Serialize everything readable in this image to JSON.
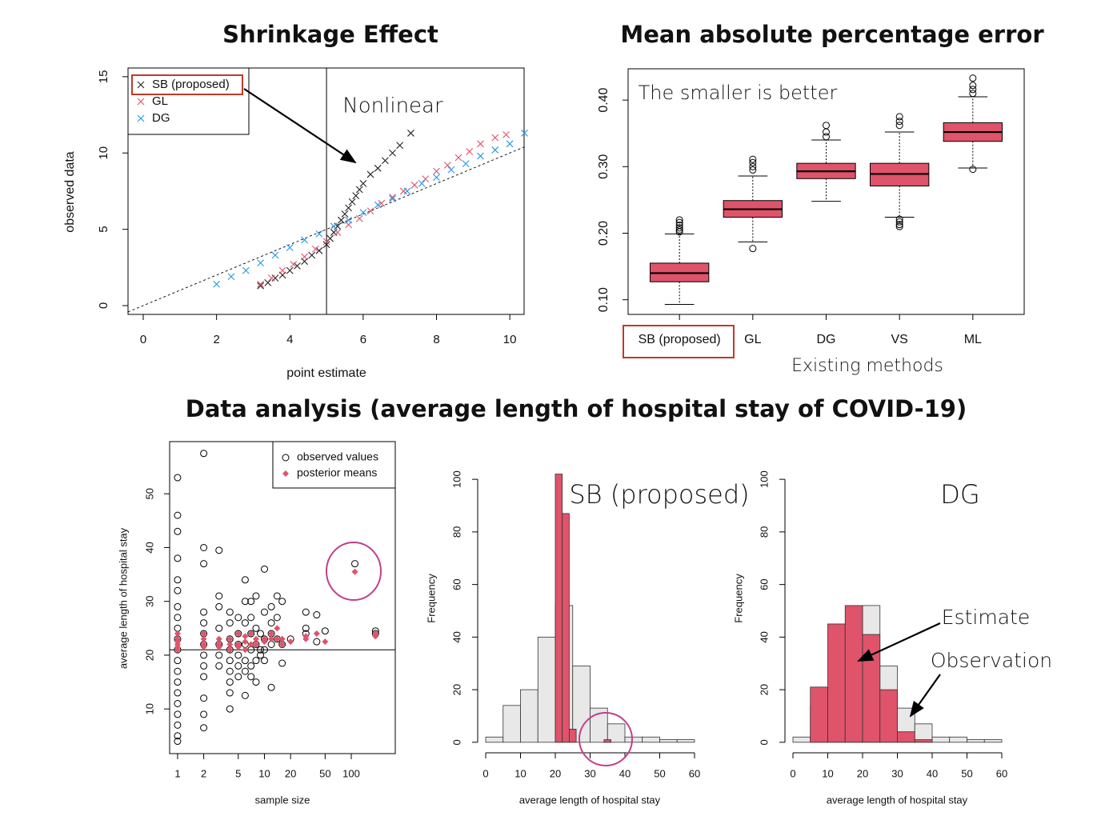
{
  "chart_data": [
    {
      "type": "scatter",
      "title": "Shrinkage Effect",
      "xlabel": "point estimate",
      "ylabel": "observed data",
      "xlim": [
        -0.415,
        10.39
      ],
      "ylim": [
        -0.577,
        15.57
      ],
      "xticks": [
        0,
        2,
        4,
        6,
        8,
        10
      ],
      "yticks": [
        0,
        5,
        10,
        15
      ],
      "vline": 5,
      "annotations": [
        "Nonlinear"
      ],
      "legend": "top-left",
      "series": [
        {
          "name": "SB (proposed)",
          "color": "#222222",
          "marker": "x",
          "x": [
            3.2,
            3.4,
            3.6,
            3.8,
            4.0,
            4.2,
            4.4,
            4.6,
            4.8,
            5.0,
            5.1,
            5.2,
            5.3,
            5.4,
            5.5,
            5.6,
            5.7,
            5.8,
            5.9,
            6.0,
            6.2,
            6.4,
            6.6,
            6.8,
            7.0,
            7.3
          ],
          "values": [
            1.3,
            1.5,
            1.8,
            2.0,
            2.3,
            2.6,
            2.9,
            3.3,
            3.6,
            4.0,
            4.4,
            4.8,
            5.2,
            5.6,
            6.0,
            6.4,
            6.8,
            7.2,
            7.6,
            8.0,
            8.6,
            9.0,
            9.5,
            10.0,
            10.5,
            11.3
          ]
        },
        {
          "name": "GL",
          "color": "#df536b",
          "marker": "x",
          "x": [
            3.2,
            3.5,
            3.8,
            4.1,
            4.4,
            4.7,
            5.0,
            5.3,
            5.6,
            5.9,
            6.2,
            6.5,
            6.8,
            7.1,
            7.4,
            7.7,
            8.0,
            8.3,
            8.6,
            8.9,
            9.2,
            9.6,
            9.9
          ],
          "values": [
            1.4,
            1.8,
            2.3,
            2.7,
            3.2,
            3.7,
            4.2,
            4.8,
            5.3,
            5.7,
            6.2,
            6.7,
            7.1,
            7.5,
            7.9,
            8.3,
            8.8,
            9.2,
            9.7,
            10.1,
            10.6,
            11.0,
            11.2
          ]
        },
        {
          "name": "DG",
          "color": "#2297e6",
          "marker": "x",
          "x": [
            2.0,
            2.4,
            2.8,
            3.2,
            3.6,
            4.0,
            4.4,
            4.8,
            5.2,
            5.6,
            6.0,
            6.4,
            6.8,
            7.2,
            7.6,
            8.0,
            8.4,
            8.8,
            9.2,
            9.6,
            10.0,
            10.4
          ],
          "values": [
            1.4,
            1.9,
            2.3,
            2.8,
            3.3,
            3.8,
            4.3,
            4.7,
            5.2,
            5.6,
            6.1,
            6.6,
            7.0,
            7.5,
            8.0,
            8.4,
            8.9,
            9.3,
            9.8,
            10.2,
            10.6,
            11.3
          ]
        }
      ]
    },
    {
      "type": "box",
      "title": "Mean absolute percentage error",
      "xlabel": "Existing methods",
      "annotations": [
        "The smaller is better"
      ],
      "categories": [
        "SB (proposed)",
        "GL",
        "DG",
        "VS",
        "ML"
      ],
      "ylim": [
        0.078,
        0.447
      ],
      "yticks": [
        {
          "value": 0.1,
          "label": "0.10"
        },
        {
          "value": 0.2,
          "label": "0.20"
        },
        {
          "value": 0.3,
          "label": "0.30"
        },
        {
          "value": 0.4,
          "label": "0.40"
        }
      ],
      "color": "#df536b",
      "boxes": [
        {
          "whislo": 0.093,
          "q1": 0.127,
          "median": 0.14,
          "q3": 0.155,
          "whishi": 0.199,
          "fliers": [
            0.202,
            0.205,
            0.208,
            0.212,
            0.216,
            0.22
          ]
        },
        {
          "whislo": 0.187,
          "q1": 0.224,
          "median": 0.236,
          "q3": 0.249,
          "whishi": 0.286,
          "fliers": [
            0.177,
            0.295,
            0.3,
            0.306,
            0.311
          ]
        },
        {
          "whislo": 0.248,
          "q1": 0.282,
          "median": 0.293,
          "q3": 0.305,
          "whishi": 0.34,
          "fliers": [
            0.345,
            0.352,
            0.362
          ]
        },
        {
          "whislo": 0.224,
          "q1": 0.271,
          "median": 0.289,
          "q3": 0.305,
          "whishi": 0.352,
          "fliers": [
            0.21,
            0.213,
            0.217,
            0.221,
            0.362,
            0.368,
            0.375
          ]
        },
        {
          "whislo": 0.298,
          "q1": 0.338,
          "median": 0.352,
          "q3": 0.366,
          "whishi": 0.405,
          "fliers": [
            0.296,
            0.41,
            0.416,
            0.422,
            0.433
          ]
        }
      ]
    },
    {
      "type": "scatter",
      "xlabel": "sample size",
      "ylabel": "average length of hospital stay",
      "xscale": "log",
      "xlim": [
        0.81,
        321
      ],
      "ylim": [
        1.7,
        59.7
      ],
      "xticks": [
        1,
        2,
        5,
        10,
        20,
        50,
        100
      ],
      "yticks": [
        10,
        20,
        30,
        40,
        50
      ],
      "hline": 21,
      "legend": "top-right",
      "series": [
        {
          "name": "observed values",
          "color": "#000000",
          "marker": "circle",
          "x": [
            1,
            1,
            1,
            1,
            1,
            1,
            1,
            1,
            1,
            1,
            1,
            1,
            1,
            1,
            1,
            1,
            1,
            1,
            1,
            1,
            2,
            2,
            2,
            2,
            2,
            2,
            2,
            2,
            2,
            2,
            2,
            2,
            2,
            3,
            3,
            3,
            3,
            3,
            3,
            3,
            4,
            4,
            4,
            4,
            4,
            4,
            4,
            4,
            4,
            5,
            5,
            5,
            5,
            5,
            5,
            6,
            6,
            6,
            6,
            6,
            6,
            6,
            7,
            7,
            7,
            7,
            7,
            7,
            8,
            8,
            8,
            8,
            8,
            9,
            9,
            9,
            10,
            10,
            10,
            10,
            10,
            12,
            12,
            12,
            12,
            12,
            14,
            14,
            14,
            16,
            16,
            16,
            20,
            30,
            30,
            30,
            40,
            40,
            50,
            110,
            190,
            190
          ],
          "values": [
            53,
            46,
            43,
            38,
            34,
            32,
            29,
            27,
            25,
            23,
            21,
            19,
            17,
            15,
            13,
            11,
            9,
            7,
            5,
            4,
            57.5,
            40,
            37,
            28,
            26,
            24,
            22,
            20,
            18,
            16,
            12,
            9,
            6.5,
            39.5,
            31,
            29,
            25,
            22,
            20,
            18,
            28,
            26,
            23,
            21,
            19,
            17,
            15,
            13,
            10,
            27,
            24,
            22,
            20,
            18,
            16,
            34,
            30,
            26,
            22,
            19,
            17,
            12.5,
            30,
            27,
            24,
            21,
            18,
            16,
            31,
            25,
            22,
            19,
            15,
            24,
            21,
            20,
            36,
            28,
            23,
            21,
            19,
            29,
            26,
            24,
            22,
            14,
            31,
            27,
            23,
            30,
            22,
            18.5,
            23,
            28,
            25,
            24,
            27.5,
            22.5,
            24.5,
            37,
            24.5,
            24
          ]
        },
        {
          "name": "posterior means",
          "color": "#df536b",
          "marker": "diamond",
          "x": [
            1,
            1,
            1,
            1,
            1,
            1,
            2,
            2,
            2,
            2,
            3,
            3,
            3,
            4,
            4,
            4,
            5,
            5,
            5,
            6,
            6,
            6,
            7,
            7,
            8,
            8,
            10,
            10,
            12,
            12,
            14,
            14,
            16,
            16,
            20,
            30,
            30,
            40,
            50,
            110,
            190,
            190
          ],
          "values": [
            24,
            23,
            22.5,
            22,
            21.5,
            21,
            24,
            23,
            22,
            21.5,
            23,
            22,
            21.5,
            23,
            22,
            21,
            24,
            22,
            21.5,
            23.5,
            22.5,
            21,
            24,
            22,
            23,
            22,
            23,
            22.5,
            24,
            23,
            25,
            23,
            22,
            23,
            22.5,
            23.5,
            23,
            24,
            22.5,
            35.5,
            23.5,
            24
          ]
        }
      ]
    },
    {
      "type": "histogram",
      "xlabel": "average length of hospital stay",
      "ylabel": "Frequency",
      "xlim": [
        0,
        60
      ],
      "ylim": [
        -4,
        104
      ],
      "xticks": [
        0,
        10,
        20,
        30,
        40,
        50,
        60
      ],
      "yticks": [
        0,
        20,
        40,
        60,
        80,
        100
      ],
      "annotations": [
        "SB (proposed)"
      ],
      "series": [
        {
          "color": "#e8e8e8",
          "bins": [
            0,
            5,
            10,
            15,
            20,
            25,
            30,
            35,
            40,
            45,
            50,
            55,
            60
          ],
          "values": [
            2,
            14,
            20,
            40,
            52,
            29,
            13,
            7,
            2,
            2,
            1,
            1
          ]
        },
        {
          "color": "#df536b",
          "bins": [
            20,
            22,
            24,
            26,
            28,
            30,
            32,
            34,
            36
          ],
          "values": [
            102,
            87,
            5,
            0,
            0,
            0,
            0,
            1
          ]
        }
      ]
    },
    {
      "type": "histogram",
      "xlabel": "average length of hospital stay",
      "ylabel": "Frequency",
      "xlim": [
        0,
        60
      ],
      "ylim": [
        -4,
        104
      ],
      "xticks": [
        0,
        10,
        20,
        30,
        40,
        50,
        60
      ],
      "yticks": [
        0,
        20,
        40,
        60,
        80,
        100
      ],
      "annotations": [
        "DG",
        "Estimate",
        "Observation"
      ],
      "series": [
        {
          "color": "#e8e8e8",
          "bins": [
            0,
            5,
            10,
            15,
            20,
            25,
            30,
            35,
            40,
            45,
            50,
            55,
            60
          ],
          "values": [
            2,
            14,
            20,
            40,
            52,
            29,
            13,
            7,
            2,
            2,
            1,
            1
          ]
        },
        {
          "color": "#df536b",
          "bins": [
            0,
            5,
            10,
            15,
            20,
            25,
            30,
            35,
            40,
            45,
            50,
            55,
            60
          ],
          "values": [
            0,
            21,
            45,
            52,
            41,
            20,
            4,
            1,
            0,
            0,
            0,
            0
          ]
        }
      ]
    }
  ],
  "heading": "Data analysis (average length of hospital stay of COVID-19)"
}
